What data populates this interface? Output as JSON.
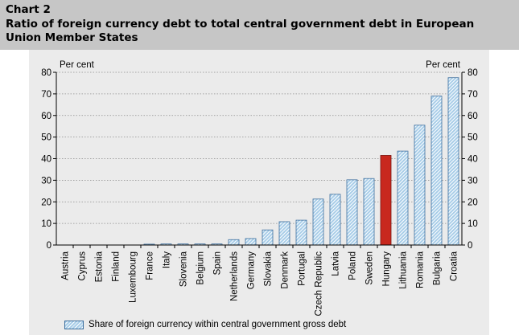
{
  "header": {
    "chart_number": "Chart 2",
    "title": "Ratio of foreign currency debt to total central government debt in European Union Member States"
  },
  "colors": {
    "header_bg": "#c6c6c6",
    "plot_bg": "#ebebeb",
    "bar_fill": "#a8cde8",
    "bar_stroke": "#3d6f9e",
    "highlight_fill": "#c8281e",
    "highlight_stroke": "#7a1410"
  },
  "chart_data": {
    "type": "bar",
    "title": "Ratio of foreign currency debt to total central government debt in European Union Member States",
    "ylabel_left": "Per cent",
    "ylabel_right": "Per cent",
    "ylim": [
      0,
      80
    ],
    "yticks": [
      0,
      10,
      20,
      30,
      40,
      50,
      60,
      70,
      80
    ],
    "grid": true,
    "categories": [
      "Austria",
      "Cyprus",
      "Estonia",
      "Finland",
      "Luxembourg",
      "France",
      "Italy",
      "Slovenia",
      "Belgium",
      "Spain",
      "Netherlands",
      "Germany",
      "Slovakia",
      "Denmark",
      "Portugal",
      "Czech Republic",
      "Latvia",
      "Poland",
      "Sweden",
      "Hungary",
      "Lithuania",
      "Romania",
      "Bulgaria",
      "Croatia"
    ],
    "values": [
      0,
      0,
      0,
      0,
      0,
      0.4,
      0.5,
      0.5,
      0.5,
      0.5,
      2.5,
      3,
      7,
      10.8,
      11.5,
      21.3,
      23.5,
      30.2,
      30.8,
      41.5,
      43.5,
      55.5,
      69,
      77.5
    ],
    "highlight": "Hungary",
    "legend": "Share of foreign currency within central government gross debt",
    "legend_position": "bottom-left"
  }
}
